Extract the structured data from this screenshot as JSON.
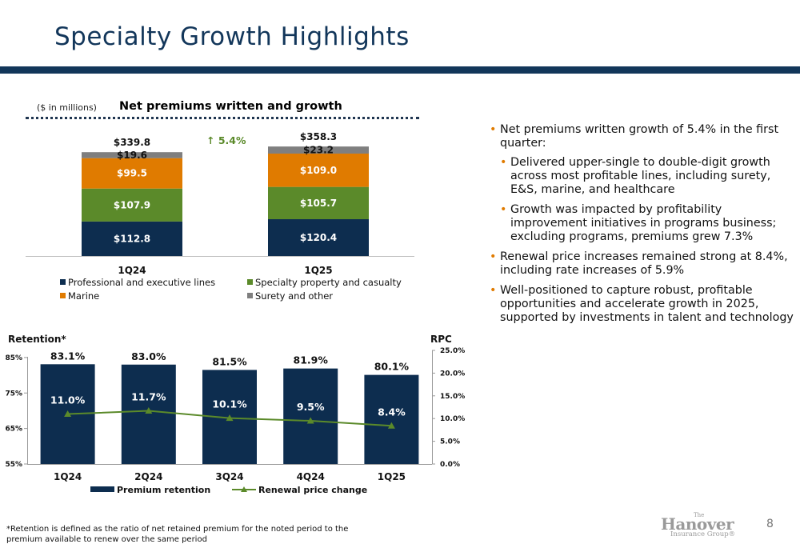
{
  "slide": {
    "title": "Specialty Growth Highlights",
    "page_number": "8",
    "footnote": "*Retention is defined as the ratio of net retained premium for the noted period to the premium available to renew over the same period"
  },
  "logo": {
    "the": "The",
    "name": "Hanover",
    "sub": "Insurance Group®"
  },
  "colors": {
    "navy": "#0d2d4f",
    "green": "#5b8a2a",
    "orange": "#e07b00",
    "gray": "#7f7f7f",
    "bullet": "#e07b00"
  },
  "bullets": [
    {
      "text": "Net premiums written growth of 5.4% in the first quarter:",
      "sub": [
        "Delivered upper-single to double-digit growth across most profitable lines, including surety, E&S, marine, and healthcare",
        "Growth was impacted by profitability improvement initiatives in programs business; excluding programs, premiums grew 7.3%"
      ]
    },
    {
      "text": "Renewal price increases remained strong at 8.4%, including rate increases of 5.9%",
      "sub": []
    },
    {
      "text": "Well-positioned to capture robust, profitable opportunities and accelerate growth in 2025, supported by investments in talent and technology",
      "sub": []
    }
  ],
  "chart_data": [
    {
      "type": "bar",
      "stacked": true,
      "title": "Net premiums written and growth",
      "units_note": "($ in millions)",
      "categories": [
        "1Q24",
        "1Q25"
      ],
      "series": [
        {
          "name": "Professional and executive lines",
          "values": [
            112.8,
            120.4
          ],
          "labels": [
            "$112.8",
            "$120.4"
          ],
          "color": "#0d2d4f"
        },
        {
          "name": "Specialty property and casualty",
          "values": [
            107.9,
            105.7
          ],
          "labels": [
            "$107.9",
            "$105.7"
          ],
          "color": "#5b8a2a"
        },
        {
          "name": "Marine",
          "values": [
            99.5,
            109.0
          ],
          "labels": [
            "$99.5",
            "$109.0"
          ],
          "color": "#e07b00"
        },
        {
          "name": "Surety and other",
          "values": [
            19.6,
            23.2
          ],
          "labels": [
            "$19.6",
            "$23.2"
          ],
          "color": "#7f7f7f"
        }
      ],
      "totals": [
        "$339.8",
        "$358.3"
      ],
      "growth_annotation": "↑ 5.4%",
      "legend_position": "bottom"
    },
    {
      "type": "bar",
      "title": "",
      "categories": [
        "1Q24",
        "2Q24",
        "3Q24",
        "4Q24",
        "1Q25"
      ],
      "y_left_label": "Retention*",
      "y_right_label": "RPC",
      "y_left_ticks": [
        "55%",
        "65%",
        "75%",
        "85%"
      ],
      "y_right_ticks": [
        "0.0%",
        "5.0%",
        "10.0%",
        "15.0%",
        "20.0%",
        "25.0%"
      ],
      "ylim_left": [
        55,
        87
      ],
      "ylim_right": [
        0,
        25
      ],
      "series": [
        {
          "name": "Premium retention",
          "type": "bar",
          "axis": "left",
          "values": [
            83.1,
            83.0,
            81.5,
            81.9,
            80.1
          ],
          "labels": [
            "83.1%",
            "83.0%",
            "81.5%",
            "81.9%",
            "80.1%"
          ],
          "color": "#0d2d4f"
        },
        {
          "name": "Renewal price change",
          "type": "line",
          "axis": "right",
          "values": [
            11.0,
            11.7,
            10.1,
            9.5,
            8.4
          ],
          "labels": [
            "11.0%",
            "11.7%",
            "10.1%",
            "9.5%",
            "8.4%"
          ],
          "color": "#5b8a2a"
        }
      ],
      "legend_position": "bottom"
    }
  ]
}
